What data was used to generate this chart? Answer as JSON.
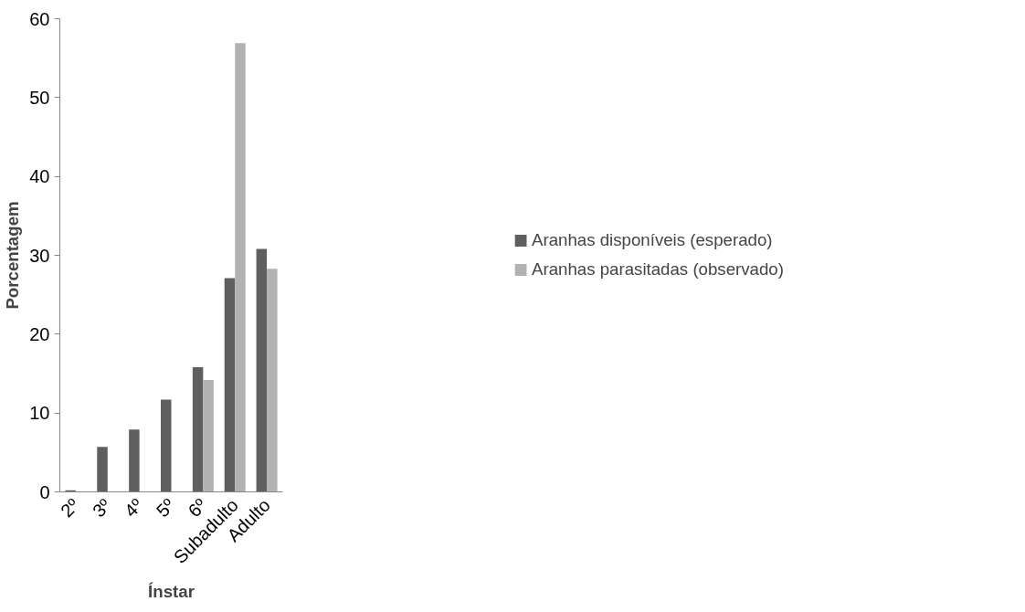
{
  "chart_data": {
    "type": "bar",
    "xlabel": "Ínstar",
    "ylabel": "Porcentagem",
    "categories": [
      "2º",
      "3º",
      "4º",
      "5º",
      "6º",
      "Subadulto",
      "Adulto"
    ],
    "series": [
      {
        "name": "Aranhas disponíveis (esperado)",
        "color": "#5f5f5f",
        "values": [
          0.2,
          5.7,
          7.9,
          11.7,
          15.8,
          27.1,
          30.8
        ]
      },
      {
        "name": "Aranhas parasitadas (observado)",
        "color": "#b2b2b2",
        "values": [
          0,
          0,
          0,
          0,
          14.2,
          56.9,
          28.3
        ]
      }
    ],
    "ylim": [
      0,
      60
    ],
    "yticks": [
      0,
      10,
      20,
      30,
      40,
      50,
      60
    ],
    "grid": false,
    "legend": "right"
  }
}
